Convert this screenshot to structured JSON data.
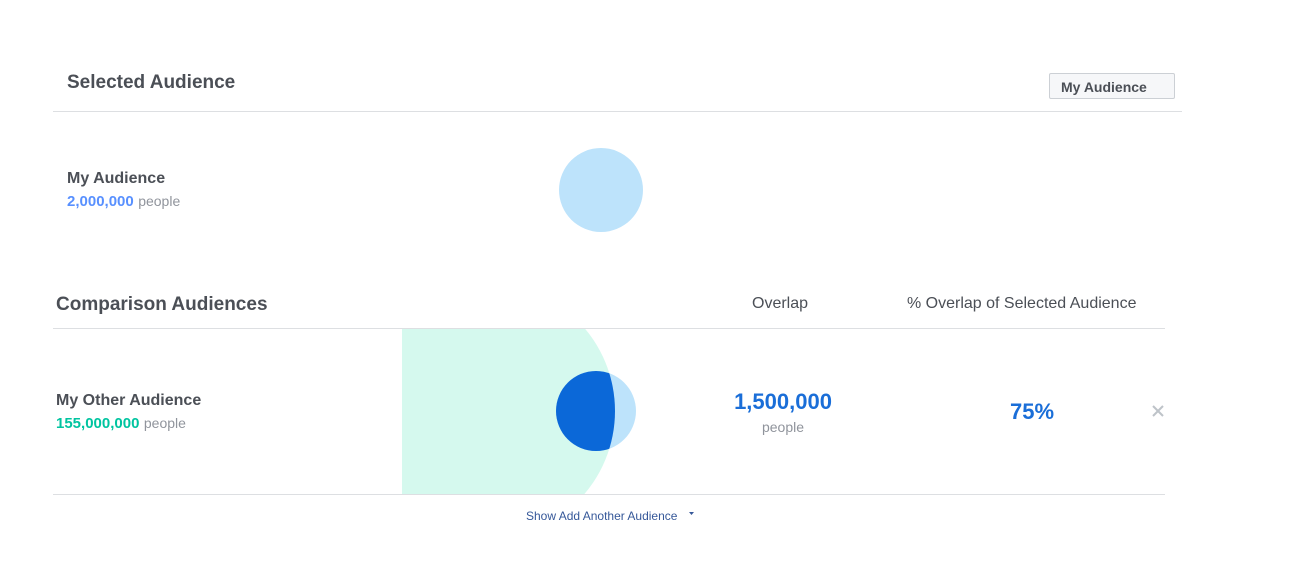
{
  "selected": {
    "title": "Selected Audience",
    "dropdown": "My Audience",
    "audience": {
      "name": "My Audience",
      "size": "2,000,000",
      "unit": "people"
    }
  },
  "comparison": {
    "title": "Comparison Audiences",
    "columns": [
      "Overlap",
      "% Overlap of Selected Audience"
    ],
    "rows": [
      {
        "name": "My Other Audience",
        "size": "155,000,000",
        "unit": "people",
        "overlap": "1,500,000",
        "overlap_unit": "people",
        "percent": "75%"
      }
    ]
  },
  "footer": {
    "link": "Show Add Another Audience"
  }
}
